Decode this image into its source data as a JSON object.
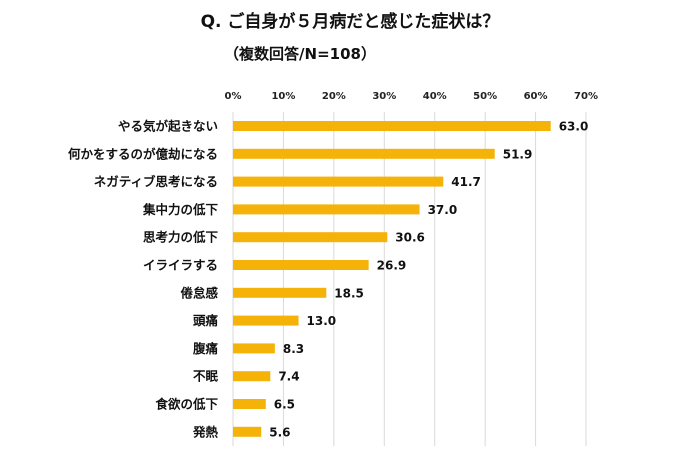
{
  "chart_data": {
    "type": "bar",
    "orientation": "horizontal",
    "title": "Q. ご自身が５月病だと感じた症状は？",
    "subtitle": "（複数回答/N=108）",
    "categories": [
      "やる気が起きない",
      "何かをするのが億劫になる",
      "ネガティブ思考になる",
      "集中力の低下",
      "思考力の低下",
      "イライラする",
      "倦怠感",
      "頭痛",
      "腹痛",
      "不眠",
      "食欲の低下",
      "発熱"
    ],
    "values": [
      63.0,
      51.9,
      41.7,
      37.0,
      30.6,
      26.9,
      18.5,
      13.0,
      8.3,
      7.4,
      6.5,
      5.6
    ],
    "data_labels": [
      "63.0",
      "51.9",
      "41.7",
      "37.0",
      "30.6",
      "26.9",
      "18.5",
      "13.0",
      "8.3",
      "7.4",
      "6.5",
      "5.6"
    ],
    "xlim": [
      0,
      70
    ],
    "x_ticks": [
      0,
      10,
      20,
      30,
      40,
      50,
      60,
      70
    ],
    "x_tick_labels": [
      "0%",
      "10%",
      "20%",
      "30%",
      "40%",
      "50%",
      "60%",
      "70%"
    ],
    "x_axis_position": "top",
    "grid": true,
    "bar_color": "#F5B30A",
    "grid_color": "#D9D9D9"
  }
}
